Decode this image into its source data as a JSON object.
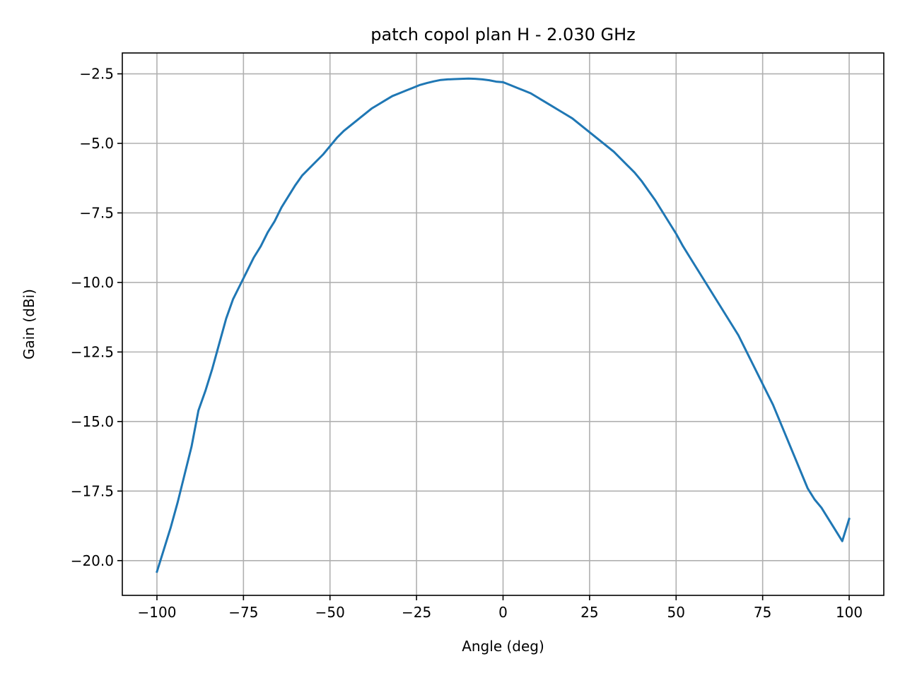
{
  "chart_data": {
    "type": "line",
    "title": "patch copol plan H - 2.030 GHz",
    "xlabel": "Angle (deg)",
    "ylabel": "Gain (dBi)",
    "xlim": [
      -110,
      110
    ],
    "ylim": [
      -21.25,
      -1.75
    ],
    "grid": true,
    "xticks": [
      -100,
      -75,
      -50,
      -25,
      0,
      25,
      50,
      75,
      100
    ],
    "xtick_labels": [
      "−100",
      "−75",
      "−50",
      "−25",
      "0",
      "25",
      "50",
      "75",
      "100"
    ],
    "yticks": [
      -20.0,
      -17.5,
      -15.0,
      -12.5,
      -10.0,
      -7.5,
      -5.0,
      -2.5
    ],
    "ytick_labels": [
      "−20.0",
      "−17.5",
      "−15.0",
      "−12.5",
      "−10.0",
      "−7.5",
      "−5.0",
      "−2.5"
    ],
    "colors": {
      "line": "#1f77b4",
      "grid": "#b0b0b0",
      "frame": "#000000"
    },
    "series": [
      {
        "x": [
          -100,
          -98,
          -96,
          -94,
          -92,
          -90,
          -88,
          -86,
          -84,
          -82,
          -80,
          -78,
          -76,
          -74,
          -72,
          -70,
          -68,
          -66,
          -64,
          -62,
          -60,
          -58,
          -56,
          -54,
          -52,
          -50,
          -48,
          -46,
          -44,
          -42,
          -40,
          -38,
          -36,
          -34,
          -32,
          -30,
          -28,
          -26,
          -24,
          -22,
          -20,
          -18,
          -16,
          -14,
          -12,
          -10,
          -8,
          -6,
          -4,
          -2,
          0,
          2,
          4,
          6,
          8,
          10,
          12,
          14,
          16,
          18,
          20,
          22,
          24,
          26,
          28,
          30,
          32,
          34,
          36,
          38,
          40,
          42,
          44,
          46,
          48,
          50,
          52,
          54,
          56,
          58,
          60,
          62,
          64,
          66,
          68,
          70,
          72,
          74,
          76,
          78,
          80,
          82,
          84,
          86,
          88,
          90,
          92,
          94,
          96,
          98,
          100
        ],
        "y": [
          -20.4,
          -19.6,
          -18.8,
          -17.9,
          -16.9,
          -15.9,
          -14.6,
          -13.9,
          -13.1,
          -12.2,
          -11.3,
          -10.6,
          -10.1,
          -9.6,
          -9.1,
          -8.7,
          -8.2,
          -7.8,
          -7.3,
          -6.9,
          -6.5,
          -6.15,
          -5.9,
          -5.65,
          -5.4,
          -5.1,
          -4.8,
          -4.55,
          -4.35,
          -4.15,
          -3.95,
          -3.75,
          -3.6,
          -3.45,
          -3.3,
          -3.2,
          -3.1,
          -3.0,
          -2.9,
          -2.83,
          -2.77,
          -2.72,
          -2.7,
          -2.69,
          -2.68,
          -2.67,
          -2.68,
          -2.7,
          -2.73,
          -2.78,
          -2.8,
          -2.9,
          -3.0,
          -3.1,
          -3.2,
          -3.35,
          -3.5,
          -3.65,
          -3.8,
          -3.95,
          -4.1,
          -4.3,
          -4.5,
          -4.7,
          -4.9,
          -5.1,
          -5.3,
          -5.55,
          -5.8,
          -6.05,
          -6.35,
          -6.7,
          -7.05,
          -7.45,
          -7.85,
          -8.25,
          -8.7,
          -9.1,
          -9.5,
          -9.9,
          -10.3,
          -10.7,
          -11.1,
          -11.5,
          -11.9,
          -12.4,
          -12.9,
          -13.4,
          -13.9,
          -14.4,
          -15.0,
          -15.6,
          -16.2,
          -16.8,
          -17.4,
          -17.8,
          -18.1,
          -18.5,
          -18.9,
          -19.3,
          -18.5
        ]
      }
    ]
  }
}
